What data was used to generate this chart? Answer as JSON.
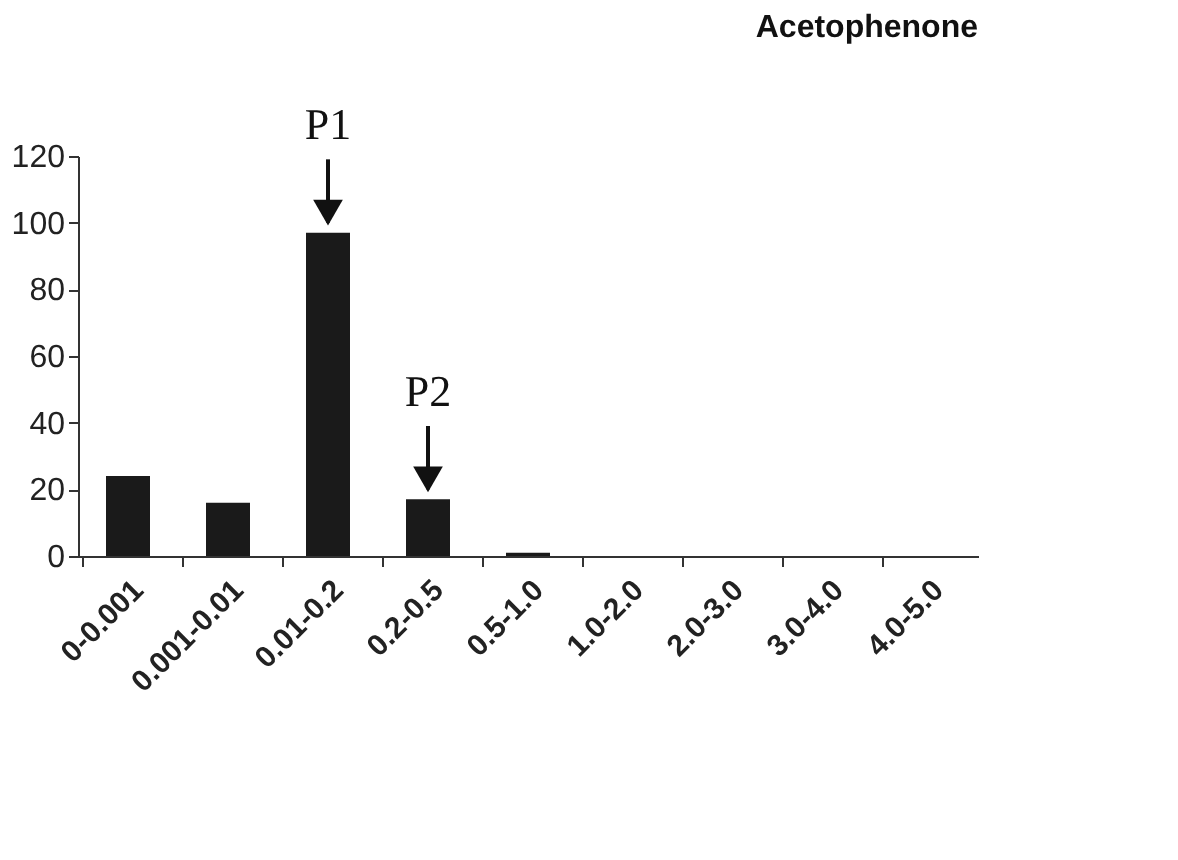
{
  "chart_data": {
    "type": "bar",
    "title": "Acetophenone",
    "categories": [
      "0-0.001",
      "0.001-0.01",
      "0.01-0.2",
      "0.2-0.5",
      "0.5-1.0",
      "1.0-2.0",
      "2.0-3.0",
      "3.0-4.0",
      "4.0-5.0"
    ],
    "values": [
      24,
      16,
      97,
      17,
      1,
      0,
      0,
      0,
      0
    ],
    "color": "#1a1a1a",
    "ylim": [
      0,
      120
    ],
    "yticks": [
      0,
      20,
      40,
      60,
      80,
      100,
      120
    ],
    "grid": false,
    "annotations": [
      {
        "text": "P1",
        "x": "0.01-0.2",
        "y": 97
      },
      {
        "text": "P2",
        "x": "0.2-0.5",
        "y": 17
      }
    ]
  }
}
